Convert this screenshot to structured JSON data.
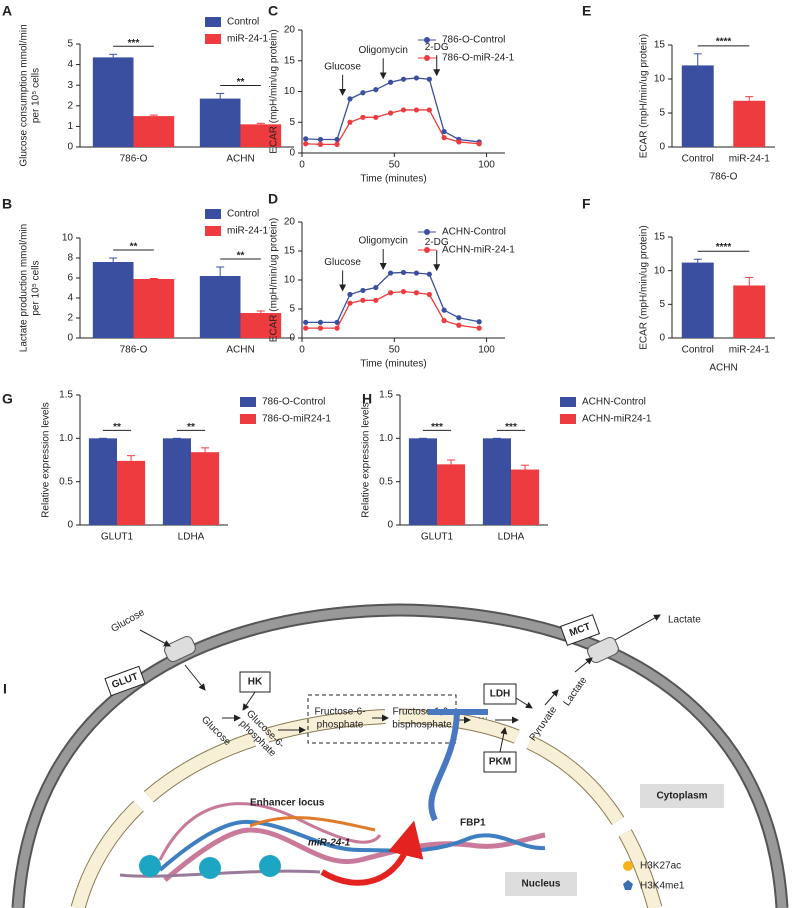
{
  "chart_data": [
    {
      "type": "bar",
      "panel": "A",
      "ylabel": [
        "Glucose consumption mmol/min",
        "per 10⁵ cells"
      ],
      "categories": [
        "786-O",
        "ACHN"
      ],
      "series": [
        {
          "name": "Control",
          "color": "#3a4fa0",
          "values": [
            4.35,
            2.35
          ],
          "errors": [
            0.15,
            0.25
          ]
        },
        {
          "name": "miR-24-1",
          "color": "#ee3b3f",
          "values": [
            1.5,
            1.1
          ],
          "errors": [
            0.05,
            0.05
          ]
        }
      ],
      "significance": [
        "***",
        "**"
      ],
      "ylim": [
        0,
        5
      ],
      "yticks": [
        0,
        1,
        2,
        3,
        4,
        5
      ]
    },
    {
      "type": "bar",
      "panel": "B",
      "ylabel": [
        "Lactate production mmol/min",
        "per 10⁵ cells"
      ],
      "categories": [
        "786-O",
        "ACHN"
      ],
      "series": [
        {
          "name": "Control",
          "color": "#3a4fa0",
          "values": [
            7.6,
            6.2
          ],
          "errors": [
            0.4,
            0.9
          ]
        },
        {
          "name": "miR-24-1",
          "color": "#ee3b3f",
          "values": [
            5.9,
            2.5
          ],
          "errors": [
            0.05,
            0.2
          ]
        }
      ],
      "significance": [
        "**",
        "**"
      ],
      "ylim": [
        0,
        10
      ],
      "yticks": [
        0,
        2,
        4,
        6,
        8,
        10
      ]
    },
    {
      "type": "line",
      "panel": "C",
      "ylabel": [
        "ECAR (mpH/min/ug protein)"
      ],
      "xlabel": "Time (minutes)",
      "x": [
        2,
        10,
        19,
        26,
        33,
        40,
        48,
        55,
        62,
        69,
        77,
        85,
        96
      ],
      "series": [
        {
          "name": "786-O-Control",
          "color": "#3a4fa0",
          "values": [
            2.3,
            2.2,
            2.2,
            8.8,
            9.8,
            10.3,
            11.5,
            12,
            12.2,
            12,
            3.5,
            2.2,
            1.8
          ]
        },
        {
          "name": "786-O-miR-24-1",
          "color": "#ee3b3f",
          "values": [
            1.5,
            1.4,
            1.4,
            5,
            5.8,
            5.8,
            6.5,
            7,
            7,
            7,
            2.5,
            1.8,
            1.5
          ]
        }
      ],
      "annotations": [
        {
          "text": "Glucose",
          "x": 22
        },
        {
          "text": "Oligomycin",
          "x": 44
        },
        {
          "text": "2-DG",
          "x": 73
        }
      ],
      "xlim": [
        0,
        110
      ],
      "xticks": [
        0,
        50,
        100
      ],
      "ylim": [
        0,
        20
      ],
      "yticks": [
        0,
        5,
        10,
        15,
        20
      ]
    },
    {
      "type": "line",
      "panel": "D",
      "ylabel": [
        "ECAR (mpH/min/ug protein)"
      ],
      "xlabel": "Time (minutes)",
      "x": [
        2,
        10,
        19,
        26,
        33,
        40,
        48,
        55,
        62,
        69,
        77,
        85,
        96
      ],
      "series": [
        {
          "name": "ACHN-Control",
          "color": "#3a4fa0",
          "values": [
            2.7,
            2.7,
            2.7,
            7.5,
            8.2,
            8.7,
            11.2,
            11.3,
            11.2,
            11,
            4.8,
            3.5,
            2.8
          ]
        },
        {
          "name": "ACHN-miR-24-1",
          "color": "#ee3b3f",
          "values": [
            1.7,
            1.7,
            1.7,
            6,
            6.5,
            6.5,
            7.8,
            8,
            7.8,
            7.5,
            3,
            2.2,
            1.7
          ]
        }
      ],
      "annotations": [
        {
          "text": "Glucose",
          "x": 22
        },
        {
          "text": "Oligomycin",
          "x": 44
        },
        {
          "text": "2-DG",
          "x": 73
        }
      ],
      "xlim": [
        0,
        110
      ],
      "xticks": [
        0,
        50,
        100
      ],
      "ylim": [
        0,
        20
      ],
      "yticks": [
        0,
        5,
        10,
        15,
        20
      ]
    },
    {
      "type": "bar",
      "panel": "E",
      "ylabel": [
        "ECAR (mpH/min/ug protein)"
      ],
      "xlabel": "786-O",
      "categories": [
        "Control",
        "miR-24-1"
      ],
      "values": [
        12,
        6.8
      ],
      "errors": [
        1.7,
        0.6
      ],
      "colors": [
        "#3a4fa0",
        "#ee3b3f"
      ],
      "significance": "****",
      "ylim": [
        0,
        15
      ],
      "yticks": [
        0,
        5,
        10,
        15
      ]
    },
    {
      "type": "bar",
      "panel": "F",
      "ylabel": [
        "ECAR (mpH/min/ug protein)"
      ],
      "xlabel": "ACHN",
      "categories": [
        "Control",
        "miR-24-1"
      ],
      "values": [
        11.2,
        7.8
      ],
      "errors": [
        0.5,
        1.2
      ],
      "colors": [
        "#3a4fa0",
        "#ee3b3f"
      ],
      "significance": "****",
      "ylim": [
        0,
        15
      ],
      "yticks": [
        0,
        5,
        10,
        15
      ]
    },
    {
      "type": "bar",
      "panel": "G",
      "ylabel": [
        "Relative expression levels"
      ],
      "categories": [
        "GLUT1",
        "LDHA"
      ],
      "series": [
        {
          "name": "786-O-Control",
          "color": "#3a4fa0",
          "values": [
            1,
            1
          ],
          "errors": [
            0,
            0
          ]
        },
        {
          "name": "786-O-miR24-1",
          "color": "#ee3b3f",
          "values": [
            0.74,
            0.84
          ],
          "errors": [
            0.06,
            0.05
          ]
        }
      ],
      "significance": [
        "**",
        "**"
      ],
      "ylim": [
        0,
        1.5
      ],
      "yticks": [
        0,
        0.5,
        {
          "value": 1,
          "label": "1.0"
        },
        1.5
      ]
    },
    {
      "type": "bar",
      "panel": "H",
      "ylabel": [
        "Relative expression levels"
      ],
      "categories": [
        "GLUT1",
        "LDHA"
      ],
      "series": [
        {
          "name": "ACHN-Control",
          "color": "#3a4fa0",
          "values": [
            1,
            1
          ],
          "errors": [
            0,
            0
          ]
        },
        {
          "name": "ACHN-miR24-1",
          "color": "#ee3b3f",
          "values": [
            0.7,
            0.64
          ],
          "errors": [
            0.05,
            0.05
          ]
        }
      ],
      "significance": [
        "***",
        "***"
      ],
      "ylim": [
        0,
        1.5
      ],
      "yticks": [
        0,
        0.5,
        {
          "value": 1,
          "label": "1.0"
        },
        1.5
      ]
    }
  ],
  "diagram": {
    "panel": "I",
    "glucose_out": "Glucose",
    "glut": "GLUT",
    "hk": "HK",
    "glucose_in": "Glucose",
    "g6p": [
      "Glucose-6-",
      "phosphate"
    ],
    "f6p": [
      "Fructose-6-",
      "phosphate"
    ],
    "f16bp": [
      "Fructose 1,6-",
      "bisphosphate"
    ],
    "dots": "···",
    "ldh": "LDH",
    "pyruvate": "Pyruvate",
    "lactate_in": "Lactate",
    "mct": "MCT",
    "lactate_out": "Lactate",
    "pkm": "PKM",
    "fbp1": "FBP1",
    "enhancer": "Enhancer locus",
    "mir": "miR-24-1",
    "cytoplasm": "Cytoplasm",
    "nucleus": "Nucleus",
    "h3k27ac": "H3K27ac",
    "h3k4me1": "H3K4me1"
  }
}
